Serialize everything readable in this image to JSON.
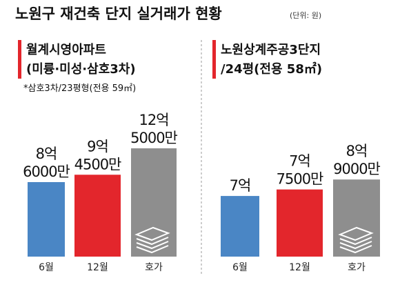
{
  "title": "노원구 재건축 단지 실거래가 현황",
  "unit": "(단위: 원)",
  "chart_data": [
    {
      "type": "bar",
      "title": [
        "월계시영아파트",
        "(미륭·미성·삼호3차)"
      ],
      "note": "*삼호3차/23평형(전용 59㎡)",
      "categories": [
        "6월",
        "12월",
        "호가"
      ],
      "values": [
        860000000,
        945000000,
        1250000000
      ],
      "value_labels": [
        "8억\n6000만",
        "9억\n4500만",
        "12억\n5000만"
      ],
      "colors": [
        "#4a86c5",
        "#e3262c",
        "#8e8e8e"
      ],
      "ylim": [
        0,
        1250000000
      ]
    },
    {
      "type": "bar",
      "title": [
        "노원상계주공3단지",
        "/24평(전용 58㎡)"
      ],
      "categories": [
        "6월",
        "12월",
        "호가"
      ],
      "values": [
        700000000,
        775000000,
        890000000
      ],
      "value_labels": [
        "7억",
        "7억\n7500만",
        "8억\n9000만"
      ],
      "colors": [
        "#4a86c5",
        "#e3262c",
        "#8e8e8e"
      ],
      "ylim": [
        0,
        1250000000
      ]
    }
  ]
}
